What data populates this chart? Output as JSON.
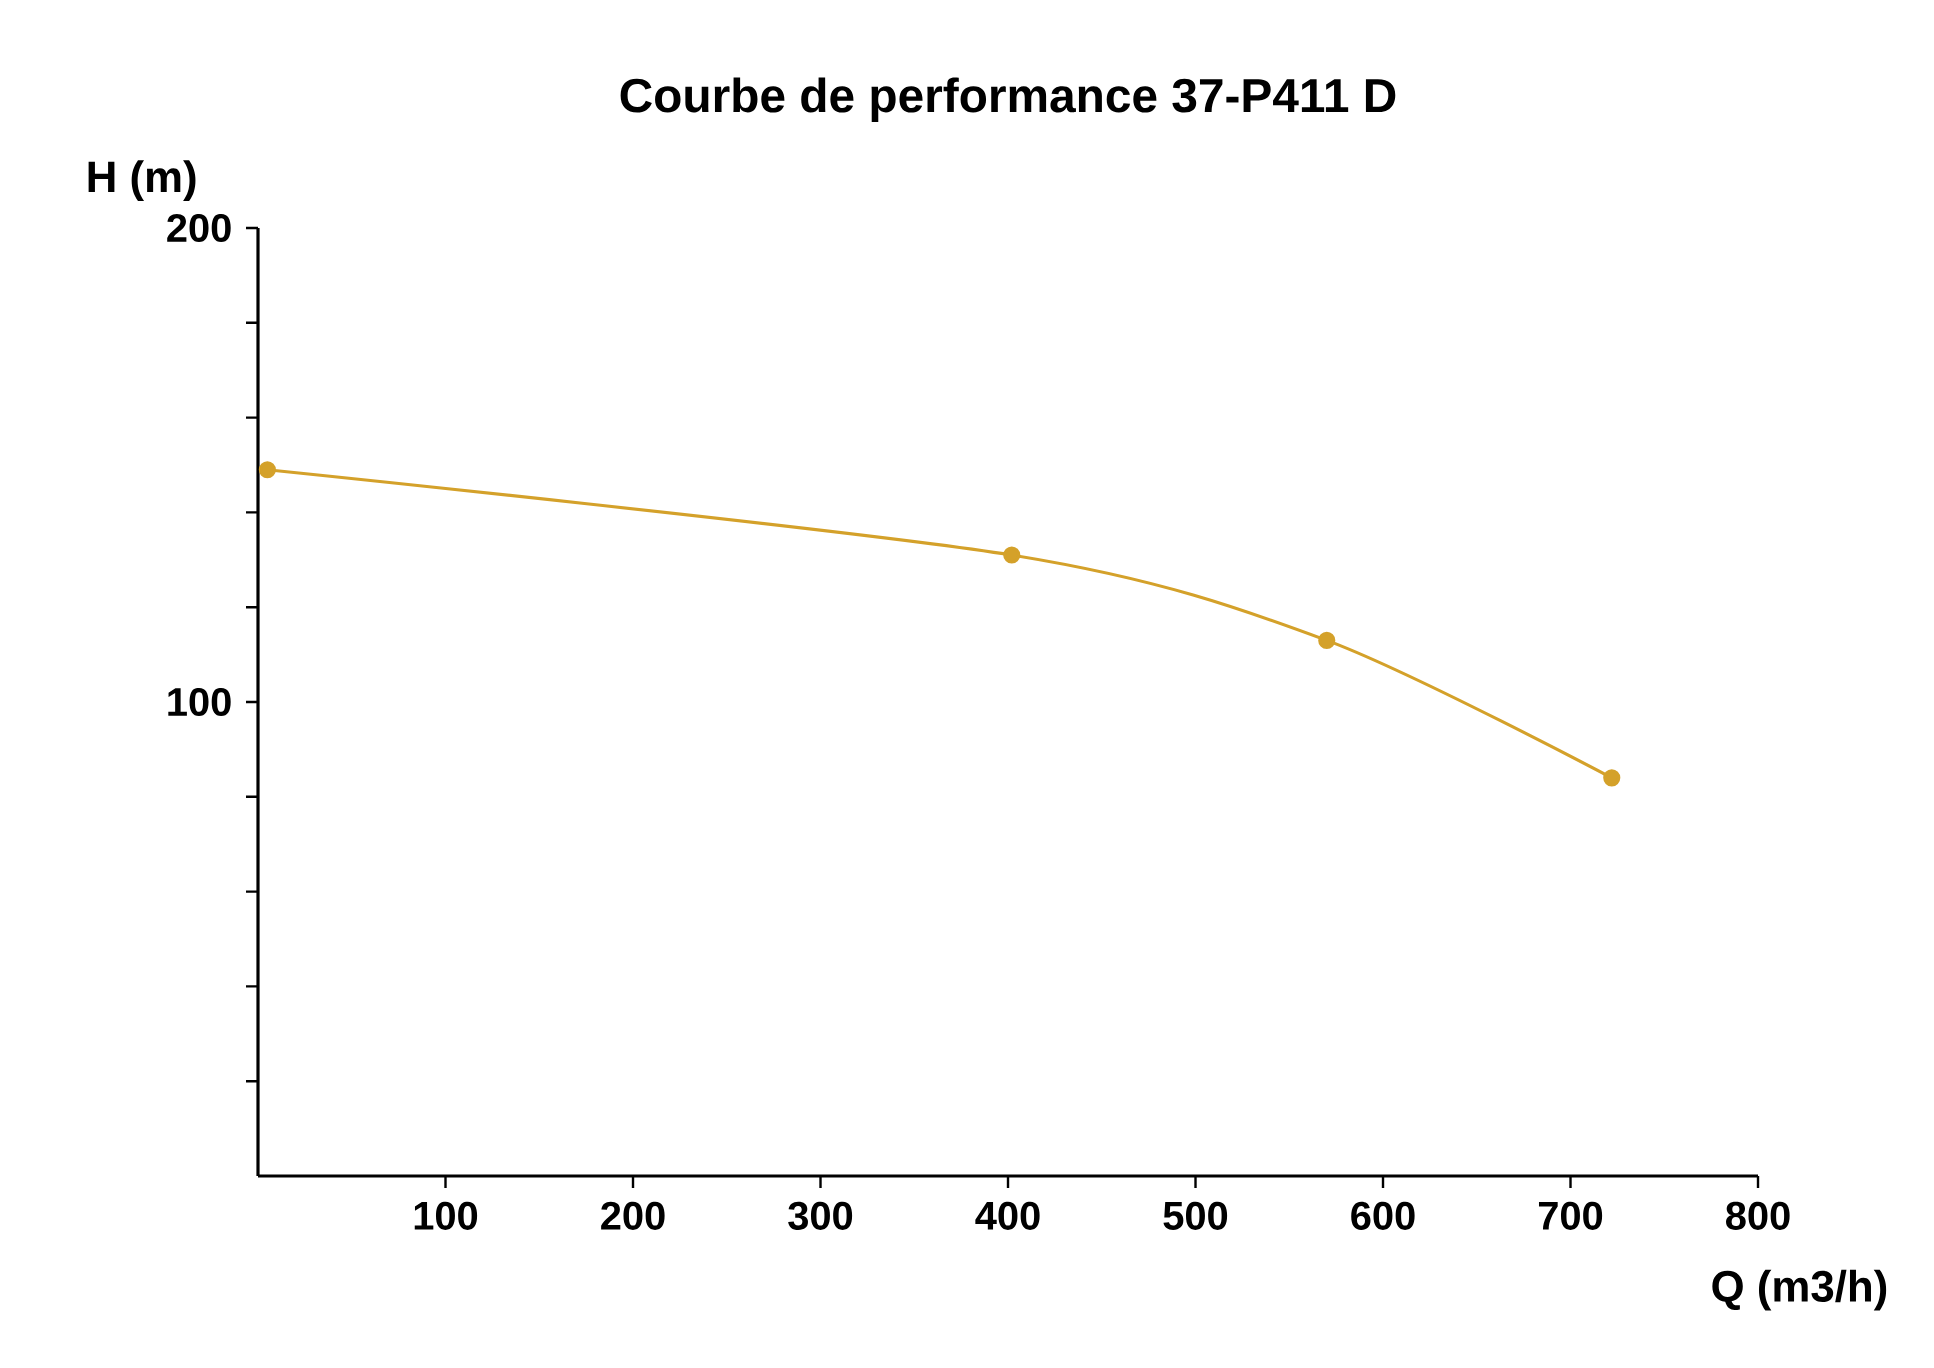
{
  "chart_data": {
    "type": "line",
    "title": "Courbe de performance 37-P411 D",
    "xlabel": "Q (m3/h)",
    "ylabel": "H (m)",
    "x": [
      5,
      402,
      570,
      722
    ],
    "series": [
      {
        "color": "#d4a12a",
        "values": [
          149,
          131,
          113,
          84
        ]
      }
    ],
    "marker": "circle",
    "line_style": "solid",
    "xlim": [
      0,
      800
    ],
    "xticks": [
      100,
      200,
      300,
      400,
      500,
      600,
      700,
      800
    ],
    "ylim": [
      0,
      200
    ],
    "yticks": [
      {
        "value": 20,
        "label": null
      },
      {
        "value": 40,
        "label": null
      },
      {
        "value": 60,
        "label": null
      },
      {
        "value": 80,
        "label": null
      },
      100,
      {
        "value": 120,
        "label": null
      },
      {
        "value": 140,
        "label": null
      },
      {
        "value": 160,
        "label": null
      },
      {
        "value": 180,
        "label": null
      },
      200
    ],
    "grid": false
  }
}
